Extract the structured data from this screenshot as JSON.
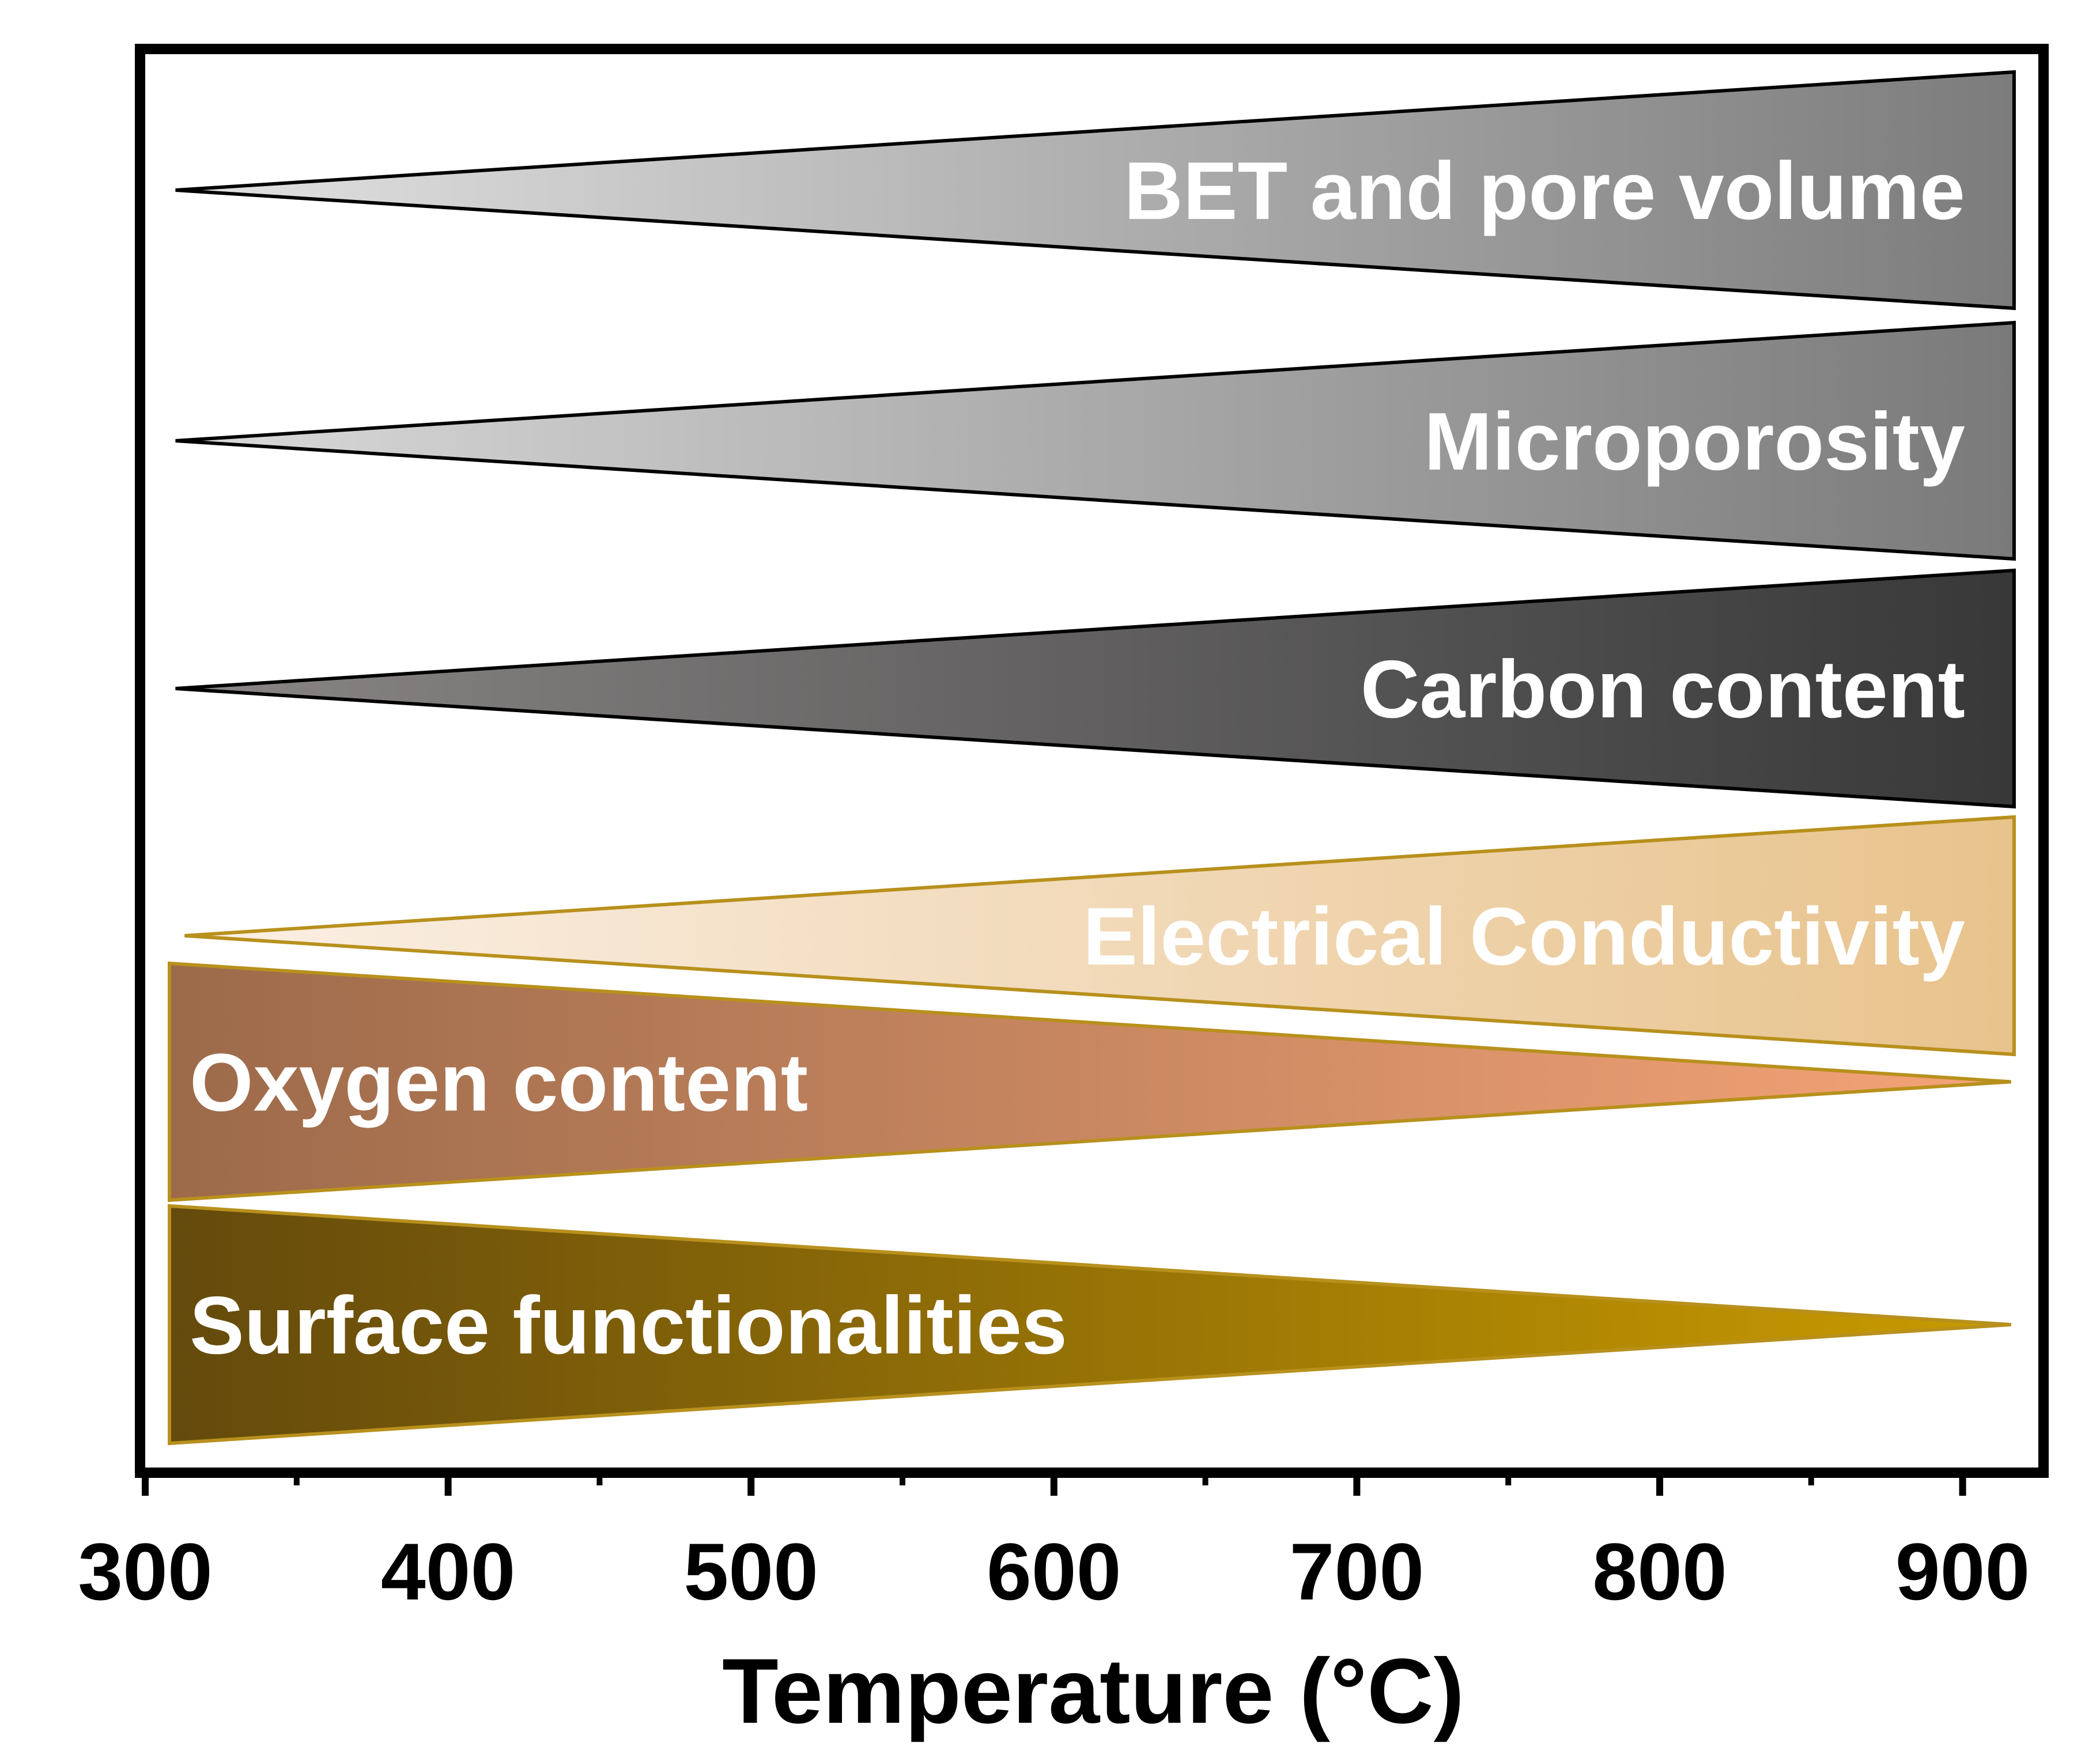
{
  "chart_data": {
    "type": "trend-wedges",
    "title": "",
    "xlabel": "Temperature (°C)",
    "ylabel": "",
    "xlim": [
      300,
      925
    ],
    "x_ticks_major": [
      300,
      400,
      500,
      600,
      700,
      800,
      900
    ],
    "x_tick_labels": [
      "300",
      "400",
      "500",
      "600",
      "700",
      "800",
      "900"
    ],
    "x_ticks_minor": [
      350,
      450,
      550,
      650,
      750,
      850
    ],
    "grid": false,
    "series": [
      {
        "name": "BET and pore volume",
        "trend": "increase",
        "x_start": 310,
        "x_end": 917,
        "colors": [
          "#e2e2e2",
          "#7c7c7c"
        ],
        "stroke": "#000000"
      },
      {
        "name": "Microporosity",
        "trend": "increase",
        "x_start": 310,
        "x_end": 917,
        "colors": [
          "#dadada",
          "#7a7a7a"
        ],
        "stroke": "#000000"
      },
      {
        "name": "Carbon content",
        "trend": "increase",
        "x_start": 310,
        "x_end": 917,
        "colors": [
          "#8a8686",
          "#383838"
        ],
        "stroke": "#000000"
      },
      {
        "name": "Electrical Conductivity",
        "trend": "increase",
        "x_start": 313,
        "x_end": 917,
        "colors": [
          "#fbf0e6",
          "#e8c38c"
        ],
        "stroke": "#b8901c"
      },
      {
        "name": "Oxygen content",
        "trend": "decrease",
        "x_start": 308,
        "x_end": 916,
        "colors": [
          "#9c6a4a",
          "#f5a477"
        ],
        "stroke": "#b8901c"
      },
      {
        "name": "Surface functionalities",
        "trend": "decrease",
        "x_start": 308,
        "x_end": 916,
        "colors": [
          "#644a0c",
          "#c99b00"
        ],
        "stroke": "#b8901c"
      }
    ]
  }
}
